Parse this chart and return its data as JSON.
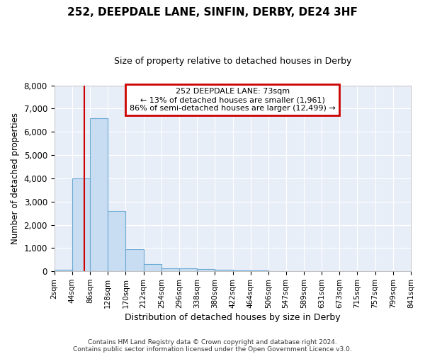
{
  "title": "252, DEEPDALE LANE, SINFIN, DERBY, DE24 3HF",
  "subtitle": "Size of property relative to detached houses in Derby",
  "xlabel": "Distribution of detached houses by size in Derby",
  "ylabel": "Number of detached properties",
  "footnote1": "Contains HM Land Registry data © Crown copyright and database right 2024.",
  "footnote2": "Contains public sector information licensed under the Open Government Licence v3.0.",
  "annotation_lines": [
    "252 DEEPDALE LANE: 73sqm",
    "← 13% of detached houses are smaller (1,961)",
    "86% of semi-detached houses are larger (12,499) →"
  ],
  "bin_edges": [
    2,
    44,
    86,
    128,
    170,
    212,
    254,
    296,
    338,
    380,
    422,
    464,
    506,
    547,
    589,
    631,
    673,
    715,
    757,
    799,
    841
  ],
  "bar_heights": [
    80,
    4000,
    6600,
    2600,
    950,
    300,
    120,
    120,
    90,
    70,
    50,
    30,
    15,
    8,
    5,
    3,
    2,
    1,
    1,
    1
  ],
  "bar_color": "#c9ddf2",
  "bar_edge_color": "#6aaad4",
  "vline_color": "#cc0000",
  "vline_x": 73,
  "annotation_box_edge_color": "#cc0000",
  "background_color": "#e8eef8",
  "grid_color": "#ffffff",
  "ylim": [
    0,
    8000
  ],
  "yticks": [
    0,
    1000,
    2000,
    3000,
    4000,
    5000,
    6000,
    7000,
    8000
  ]
}
